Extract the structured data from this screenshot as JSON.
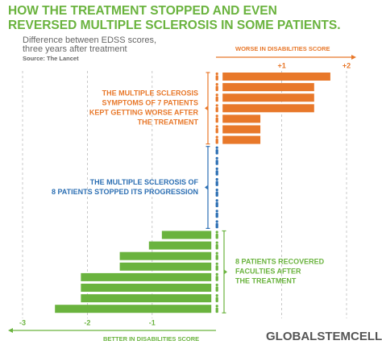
{
  "chart_data": {
    "type": "bar",
    "title": [
      "HOW THE TREATMENT STOPPED AND EVEN",
      "REVERSED MULTIPLE SCLEROSIS IN SOME PATIENTS."
    ],
    "subtitle": [
      "Difference between EDSS scores,",
      "three years after treatment"
    ],
    "source": "Source: The Lancet",
    "top_axis_label": "WORSE IN DISABILITIES SCORE",
    "bottom_axis_label": "BETTER IN DISABILITIES SCORE",
    "xlim": [
      -3,
      2
    ],
    "xticks": [
      -3,
      -2,
      -1,
      {
        "value": 1,
        "label": "+1"
      },
      {
        "value": 2,
        "label": "+2"
      }
    ],
    "grid": true,
    "series": [
      {
        "color": "#e8782a",
        "annotation": [
          "THE MULTIPLE SCLEROSIS",
          "SYMPTOMS OF 7 PATIENTS",
          "KEPT GETTING WORSE AFTER",
          "THE TREATMENT"
        ],
        "values": [
          1.75,
          1.5,
          1.5,
          1.5,
          0.67,
          0.67,
          0.67
        ]
      },
      {
        "color": "#2c6fb3",
        "annotation": [
          "THE MULTIPLE SCLEROSIS OF",
          "8 PATIENTS STOPPED ITS PROGRESSION"
        ],
        "values": [
          0,
          0,
          0,
          0,
          0,
          0,
          0,
          0
        ]
      },
      {
        "color": "#6ab33e",
        "annotation": [
          "8 PATIENTS RECOVERED",
          "FACULTIES AFTER",
          "THE TREATMENT"
        ],
        "values": [
          -0.85,
          -1.05,
          -1.5,
          -1.5,
          -2.1,
          -2.1,
          -2.1,
          -2.5
        ]
      }
    ],
    "logo": "GLOBALSTEMCELLS.com"
  }
}
